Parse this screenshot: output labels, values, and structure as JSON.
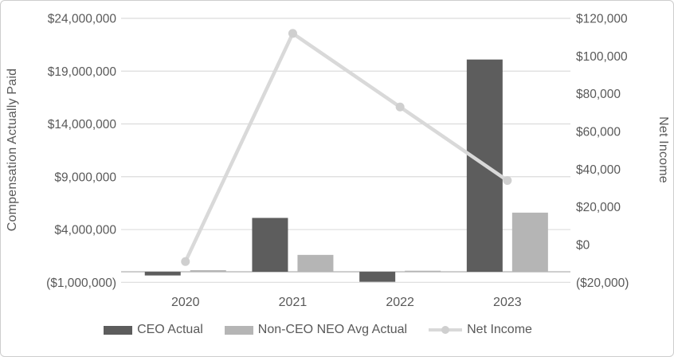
{
  "chart_data": {
    "type": "combo-bar-line",
    "categories": [
      "2020",
      "2021",
      "2022",
      "2023"
    ],
    "series": [
      {
        "name": "CEO Actual",
        "type": "bar",
        "axis": "left",
        "color": "#5d5d5d",
        "values": [
          -350000,
          5100000,
          -950000,
          20100000
        ]
      },
      {
        "name": "Non-CEO NEO Avg Actual",
        "type": "bar",
        "axis": "left",
        "color": "#b5b5b5",
        "values": [
          150000,
          1600000,
          100000,
          5600000
        ]
      },
      {
        "name": "Net Income",
        "type": "line",
        "axis": "right",
        "color": "#d9d9d9",
        "marker_color": "#cfcfcf",
        "values": [
          -9000,
          112000,
          73000,
          34000
        ]
      }
    ],
    "y_left": {
      "title": "Compensation Actually Paid",
      "min": -1000000,
      "max": 24000000,
      "ticks": [
        {
          "value": 24000000,
          "label": "$24,000,000"
        },
        {
          "value": 19000000,
          "label": "$19,000,000"
        },
        {
          "value": 14000000,
          "label": "$14,000,000"
        },
        {
          "value": 9000000,
          "label": "$9,000,000"
        },
        {
          "value": 4000000,
          "label": "$4,000,000"
        },
        {
          "value": -1000000,
          "label": "($1,000,000)"
        }
      ]
    },
    "y_right": {
      "title": "Net Income",
      "min": -20000,
      "max": 120000,
      "ticks": [
        {
          "value": 120000,
          "label": "$120,000"
        },
        {
          "value": 100000,
          "label": "$100,000"
        },
        {
          "value": 80000,
          "label": "$80,000"
        },
        {
          "value": 60000,
          "label": "$60,000"
        },
        {
          "value": 40000,
          "label": "$40,000"
        },
        {
          "value": 20000,
          "label": "$20,000"
        },
        {
          "value": 0,
          "label": "$0"
        },
        {
          "value": -20000,
          "label": "($20,000)"
        }
      ]
    },
    "grid": true,
    "legend_position": "bottom",
    "colors": {
      "text": "#595959",
      "gridline": "#dcdcdc",
      "zero_axis_line": "#b8b8b8",
      "frame_border": "#cdcdcd"
    }
  }
}
